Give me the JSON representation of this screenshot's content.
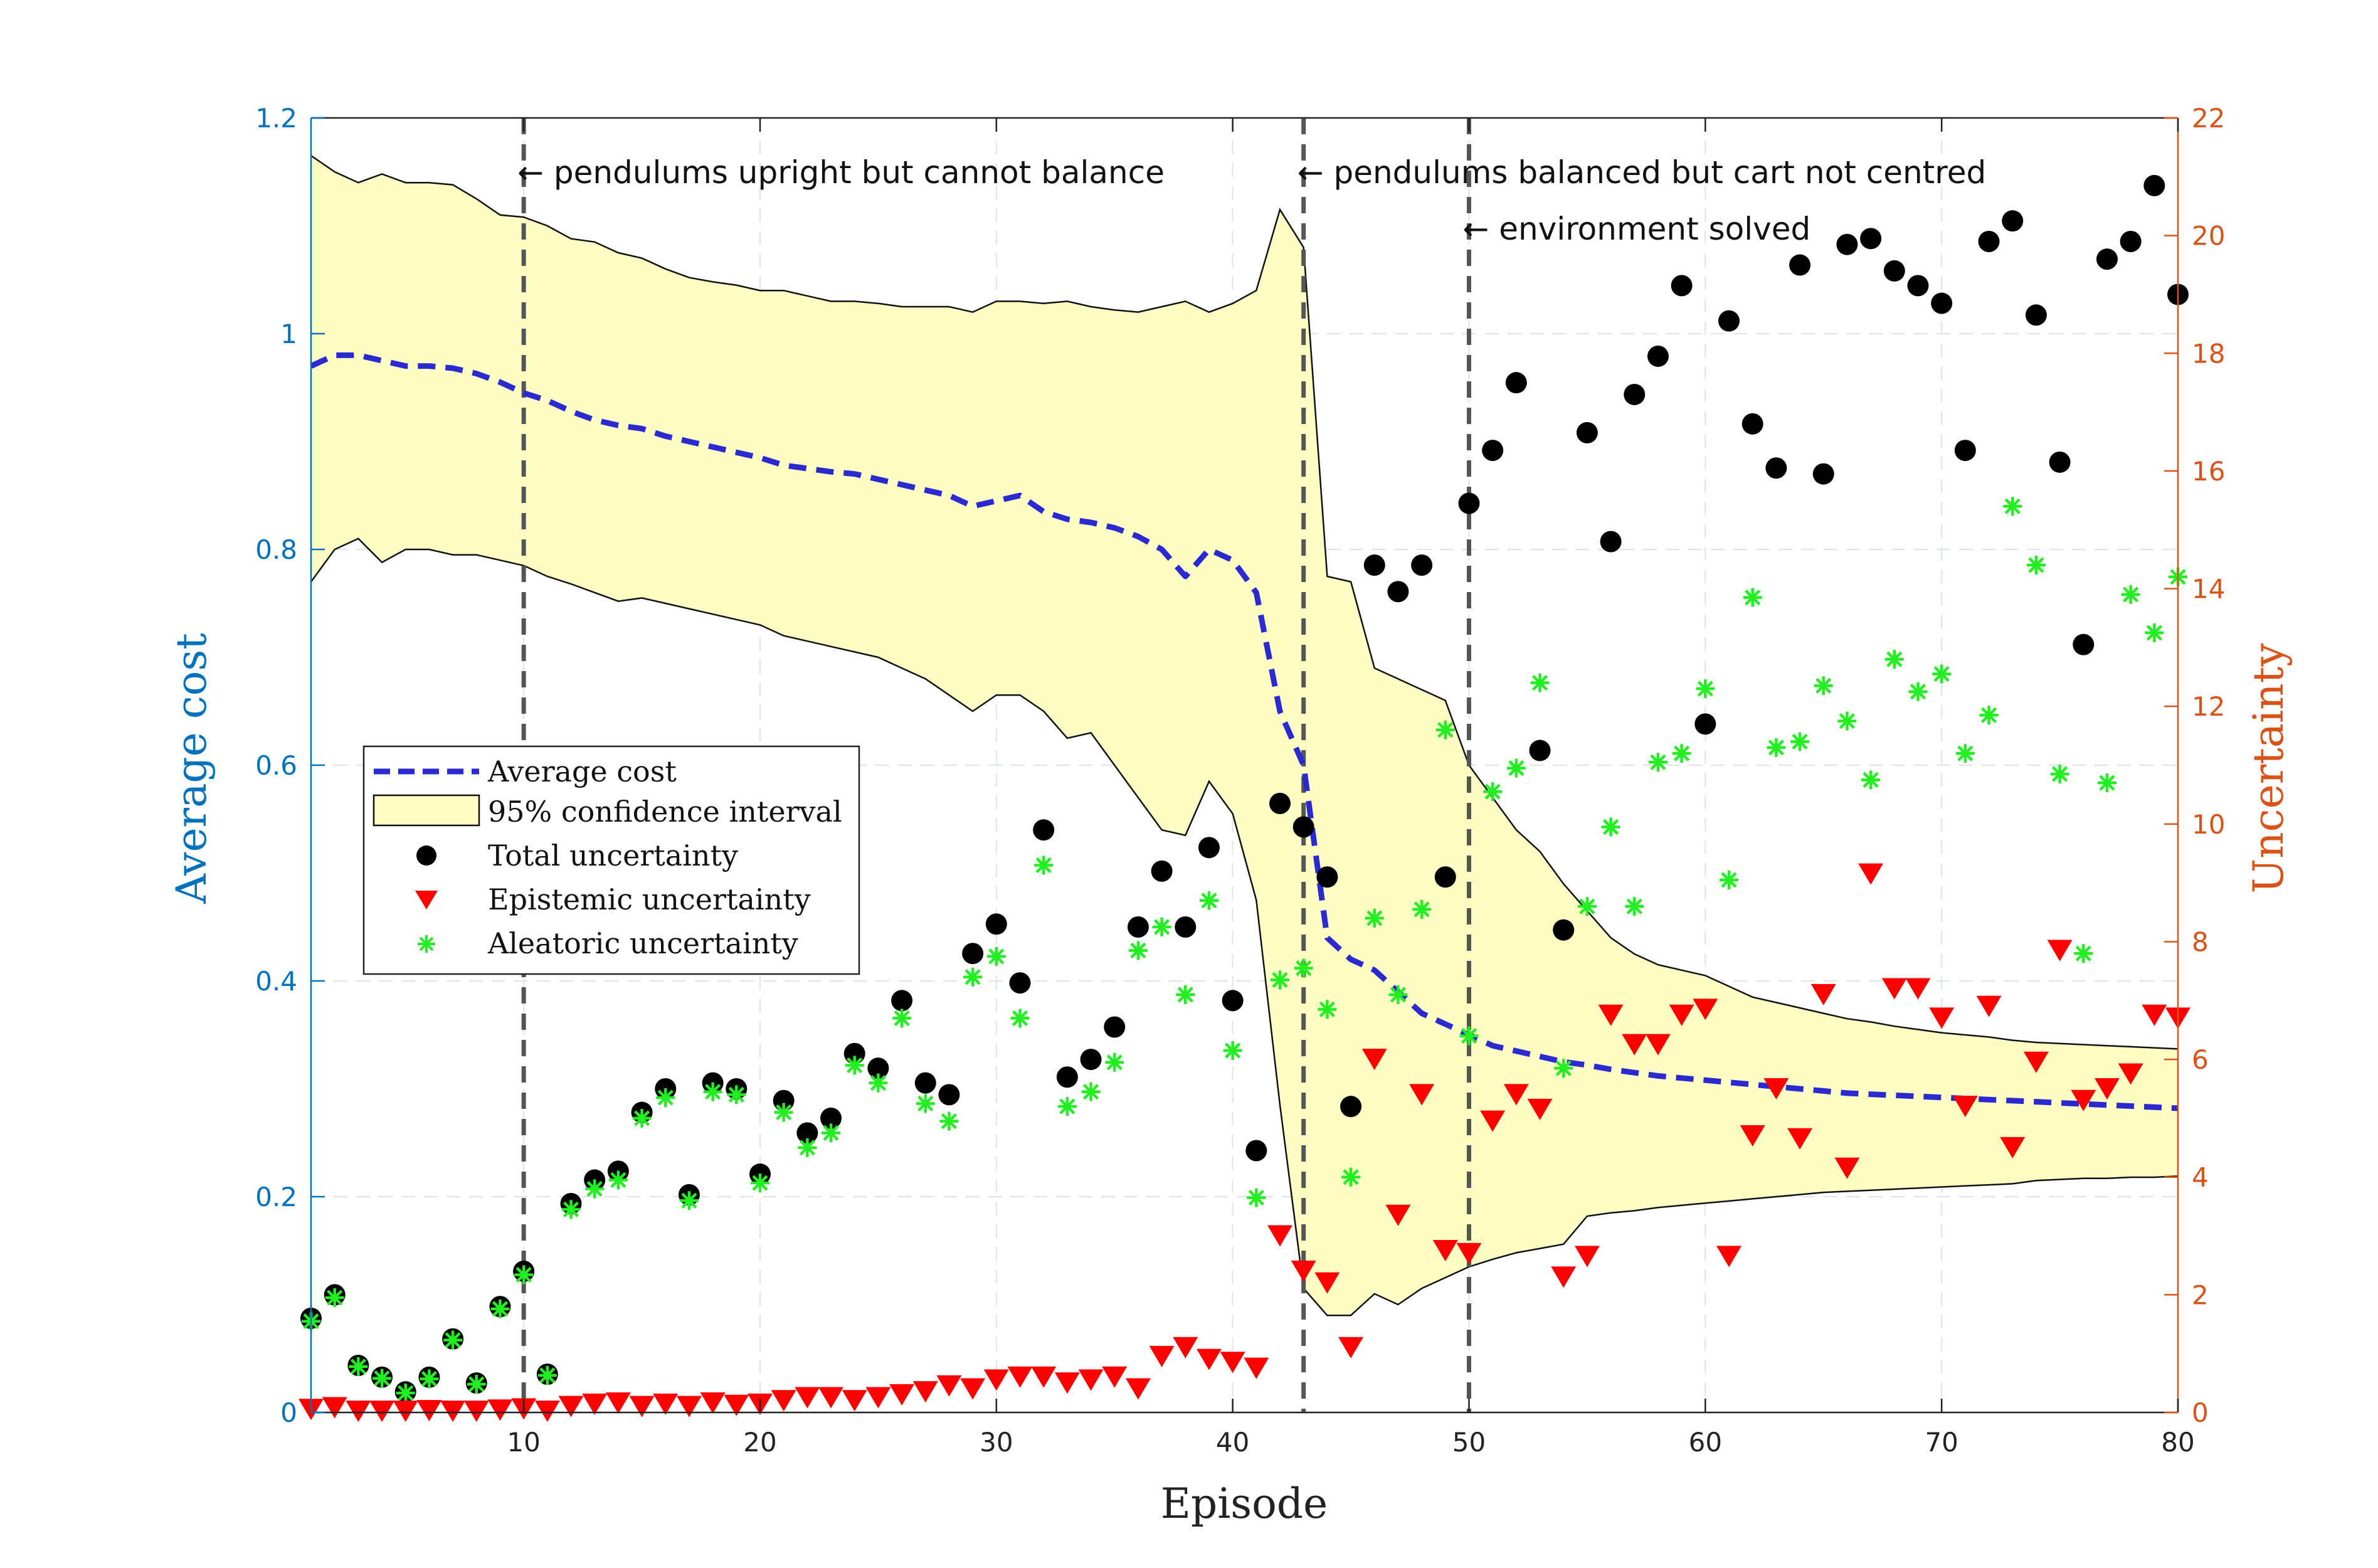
{
  "chart_data": {
    "type": "scatter",
    "xlabel": "Episode",
    "ylabel_left": "Average cost",
    "ylabel_right": "Uncertainty",
    "xlim": [
      1,
      80
    ],
    "ylim_left": [
      0,
      1.2
    ],
    "ylim_right": [
      0,
      22
    ],
    "xticks": [
      10,
      20,
      30,
      40,
      50,
      60,
      70,
      80
    ],
    "yticks_left": [
      "0",
      "0.2",
      "0.4",
      "0.6",
      "0.8",
      "1",
      "1.2"
    ],
    "yticks_left_values": [
      0,
      0.2,
      0.4,
      0.6,
      0.8,
      1.0,
      1.2
    ],
    "yticks_right": [
      0,
      2,
      4,
      6,
      8,
      10,
      12,
      14,
      16,
      18,
      20,
      22
    ],
    "colors": {
      "left_axis": "#0072BD",
      "right_axis": "#D95319",
      "mean": "#2a2ad0",
      "ci_fill": "#fdfdc4",
      "total": "#000000",
      "epistemic": "#ff0000",
      "aleatoric": "#22ee22",
      "vline": "#555555"
    },
    "legend": {
      "position": "center-left",
      "entries": [
        "Average cost",
        "95% confidence interval",
        "Total uncertainty",
        "Epistemic uncertainty",
        "Aleatoric uncertainty"
      ]
    },
    "annotations": [
      {
        "x": 10,
        "text": "← pendulums upright but cannot balance"
      },
      {
        "x": 43,
        "text": "← pendulums balanced but cart not centred"
      },
      {
        "x": 50,
        "text": "← environment solved"
      }
    ],
    "vlines": [
      10,
      43,
      50
    ],
    "series": [
      {
        "name": "Average cost",
        "axis": "left",
        "x": [
          1,
          2,
          3,
          4,
          5,
          6,
          7,
          8,
          9,
          10,
          11,
          12,
          13,
          14,
          15,
          16,
          17,
          18,
          19,
          20,
          21,
          22,
          23,
          24,
          25,
          26,
          27,
          28,
          29,
          30,
          31,
          32,
          33,
          34,
          35,
          36,
          37,
          38,
          39,
          40,
          41,
          42,
          43,
          44,
          45,
          46,
          47,
          48,
          49,
          50,
          51,
          52,
          53,
          54,
          55,
          56,
          57,
          58,
          59,
          60,
          61,
          62,
          63,
          64,
          65,
          66,
          67,
          68,
          69,
          70,
          71,
          72,
          73,
          74,
          75,
          76,
          77,
          78,
          79,
          80
        ],
        "values": [
          0.97,
          0.98,
          0.98,
          0.975,
          0.97,
          0.97,
          0.968,
          0.963,
          0.955,
          0.945,
          0.938,
          0.928,
          0.92,
          0.915,
          0.912,
          0.905,
          0.9,
          0.895,
          0.89,
          0.885,
          0.878,
          0.875,
          0.872,
          0.87,
          0.865,
          0.86,
          0.855,
          0.85,
          0.84,
          0.845,
          0.85,
          0.835,
          0.828,
          0.825,
          0.82,
          0.812,
          0.8,
          0.775,
          0.8,
          0.79,
          0.76,
          0.65,
          0.6,
          0.44,
          0.42,
          0.41,
          0.39,
          0.37,
          0.36,
          0.35,
          0.34,
          0.335,
          0.33,
          0.325,
          0.322,
          0.318,
          0.315,
          0.312,
          0.31,
          0.308,
          0.306,
          0.304,
          0.302,
          0.3,
          0.298,
          0.296,
          0.295,
          0.294,
          0.293,
          0.292,
          0.291,
          0.29,
          0.289,
          0.288,
          0.287,
          0.286,
          0.285,
          0.284,
          0.283,
          0.282
        ]
      },
      {
        "name": "95% confidence interval upper",
        "axis": "left",
        "x": [
          1,
          2,
          3,
          4,
          5,
          6,
          7,
          8,
          9,
          10,
          11,
          12,
          13,
          14,
          15,
          16,
          17,
          18,
          19,
          20,
          21,
          22,
          23,
          24,
          25,
          26,
          27,
          28,
          29,
          30,
          31,
          32,
          33,
          34,
          35,
          36,
          37,
          38,
          39,
          40,
          41,
          42,
          43,
          44,
          45,
          46,
          47,
          48,
          49,
          50,
          51,
          52,
          53,
          54,
          55,
          56,
          57,
          58,
          59,
          60,
          61,
          62,
          63,
          64,
          65,
          66,
          67,
          68,
          69,
          70,
          71,
          72,
          73,
          74,
          75,
          76,
          77,
          78,
          79,
          80
        ],
        "values": [
          1.165,
          1.15,
          1.14,
          1.148,
          1.14,
          1.14,
          1.138,
          1.125,
          1.11,
          1.108,
          1.1,
          1.088,
          1.085,
          1.075,
          1.07,
          1.06,
          1.052,
          1.048,
          1.045,
          1.04,
          1.04,
          1.035,
          1.03,
          1.03,
          1.028,
          1.025,
          1.025,
          1.025,
          1.02,
          1.03,
          1.03,
          1.028,
          1.03,
          1.025,
          1.022,
          1.02,
          1.025,
          1.03,
          1.02,
          1.028,
          1.04,
          1.115,
          1.08,
          0.775,
          0.77,
          0.69,
          0.68,
          0.67,
          0.66,
          0.6,
          0.57,
          0.54,
          0.52,
          0.49,
          0.465,
          0.44,
          0.425,
          0.415,
          0.41,
          0.405,
          0.395,
          0.385,
          0.38,
          0.375,
          0.37,
          0.365,
          0.362,
          0.358,
          0.355,
          0.352,
          0.35,
          0.348,
          0.345,
          0.343,
          0.342,
          0.341,
          0.34,
          0.339,
          0.338,
          0.337
        ]
      },
      {
        "name": "95% confidence interval lower",
        "axis": "left",
        "x": [
          1,
          2,
          3,
          4,
          5,
          6,
          7,
          8,
          9,
          10,
          11,
          12,
          13,
          14,
          15,
          16,
          17,
          18,
          19,
          20,
          21,
          22,
          23,
          24,
          25,
          26,
          27,
          28,
          29,
          30,
          31,
          32,
          33,
          34,
          35,
          36,
          37,
          38,
          39,
          40,
          41,
          42,
          43,
          44,
          45,
          46,
          47,
          48,
          49,
          50,
          51,
          52,
          53,
          54,
          55,
          56,
          57,
          58,
          59,
          60,
          61,
          62,
          63,
          64,
          65,
          66,
          67,
          68,
          69,
          70,
          71,
          72,
          73,
          74,
          75,
          76,
          77,
          78,
          79,
          80
        ],
        "values": [
          0.77,
          0.8,
          0.81,
          0.788,
          0.8,
          0.8,
          0.795,
          0.795,
          0.79,
          0.785,
          0.775,
          0.768,
          0.76,
          0.752,
          0.755,
          0.75,
          0.745,
          0.74,
          0.735,
          0.73,
          0.72,
          0.715,
          0.71,
          0.705,
          0.7,
          0.69,
          0.68,
          0.665,
          0.65,
          0.665,
          0.665,
          0.65,
          0.625,
          0.63,
          0.6,
          0.57,
          0.54,
          0.535,
          0.585,
          0.555,
          0.475,
          0.285,
          0.115,
          0.09,
          0.09,
          0.11,
          0.1,
          0.115,
          0.125,
          0.135,
          0.142,
          0.148,
          0.152,
          0.156,
          0.182,
          0.185,
          0.187,
          0.19,
          0.192,
          0.194,
          0.196,
          0.198,
          0.2,
          0.202,
          0.204,
          0.205,
          0.206,
          0.207,
          0.208,
          0.209,
          0.21,
          0.211,
          0.212,
          0.215,
          0.216,
          0.217,
          0.217,
          0.218,
          0.218,
          0.219
        ]
      },
      {
        "name": "Total uncertainty",
        "axis": "right",
        "x": [
          1,
          2,
          3,
          4,
          5,
          6,
          7,
          8,
          9,
          10,
          11,
          12,
          13,
          14,
          15,
          16,
          17,
          18,
          19,
          20,
          21,
          22,
          23,
          24,
          25,
          26,
          27,
          28,
          29,
          30,
          31,
          32,
          33,
          34,
          35,
          36,
          37,
          38,
          39,
          40,
          41,
          42,
          43,
          44,
          45,
          46,
          47,
          48,
          49,
          50,
          51,
          52,
          53,
          54,
          55,
          56,
          57,
          58,
          59,
          60,
          61,
          62,
          63,
          64,
          65,
          66,
          67,
          68,
          69,
          70,
          71,
          72,
          73,
          74,
          75,
          76,
          77,
          78,
          79,
          80
        ],
        "values": [
          1.6,
          2.0,
          0.8,
          0.6,
          0.35,
          0.6,
          1.25,
          0.5,
          1.8,
          2.4,
          0.65,
          3.55,
          3.95,
          4.1,
          5.1,
          5.5,
          3.7,
          5.6,
          5.5,
          4.05,
          5.3,
          4.75,
          5.0,
          6.1,
          5.85,
          7.0,
          5.6,
          5.4,
          7.8,
          8.3,
          7.3,
          9.9,
          5.7,
          6.0,
          6.55,
          8.25,
          9.2,
          8.25,
          9.6,
          7.0,
          4.45,
          10.35,
          9.95,
          9.1,
          5.2,
          14.4,
          13.95,
          14.4,
          9.1,
          15.45,
          16.35,
          17.5,
          11.25,
          8.2,
          16.65,
          14.8,
          17.3,
          17.95,
          19.15,
          11.7,
          18.55,
          16.8,
          16.05,
          19.5,
          15.95,
          19.85,
          19.95,
          19.4,
          19.15,
          18.85,
          16.35,
          19.9,
          20.25,
          18.65,
          16.15,
          13.05,
          19.6,
          19.9,
          20.85,
          19.0
        ],
        "note": "values listed for x=1..80 in order"
      },
      {
        "name": "Epistemic uncertainty",
        "axis": "right",
        "x": [
          1,
          2,
          3,
          4,
          5,
          6,
          7,
          8,
          9,
          10,
          11,
          12,
          13,
          14,
          15,
          16,
          17,
          18,
          19,
          20,
          21,
          22,
          23,
          24,
          25,
          26,
          27,
          28,
          29,
          30,
          31,
          32,
          33,
          34,
          35,
          36,
          37,
          38,
          39,
          40,
          41,
          42,
          43,
          44,
          45,
          46,
          47,
          48,
          49,
          50,
          51,
          52,
          53,
          54,
          55,
          56,
          57,
          58,
          59,
          60,
          61,
          62,
          63,
          64,
          65,
          66,
          67,
          68,
          69,
          70,
          71,
          72,
          73,
          74,
          75,
          76,
          77,
          78,
          79,
          80
        ],
        "values": [
          0.05,
          0.08,
          0.02,
          0.02,
          0.02,
          0.03,
          0.02,
          0.02,
          0.04,
          0.06,
          0.02,
          0.1,
          0.14,
          0.16,
          0.1,
          0.14,
          0.1,
          0.16,
          0.12,
          0.14,
          0.2,
          0.25,
          0.25,
          0.2,
          0.25,
          0.3,
          0.35,
          0.45,
          0.4,
          0.55,
          0.6,
          0.6,
          0.5,
          0.55,
          0.6,
          0.4,
          0.95,
          1.1,
          0.9,
          0.85,
          0.75,
          3.0,
          2.4,
          2.2,
          1.1,
          6.0,
          3.35,
          5.4,
          2.75,
          2.7,
          4.95,
          5.4,
          5.15,
          2.3,
          2.65,
          6.75,
          6.25,
          6.25,
          6.75,
          6.85,
          2.65,
          4.7,
          5.5,
          4.65,
          7.1,
          4.15,
          9.15,
          7.2,
          7.2,
          6.7,
          5.2,
          6.9,
          4.5,
          5.95,
          7.85,
          5.3,
          5.5,
          5.75,
          6.75,
          6.7
        ]
      },
      {
        "name": "Aleatoric uncertainty",
        "axis": "right",
        "x": [
          1,
          2,
          3,
          4,
          5,
          6,
          7,
          8,
          9,
          10,
          11,
          12,
          13,
          14,
          15,
          16,
          17,
          18,
          19,
          20,
          21,
          22,
          23,
          24,
          25,
          26,
          27,
          28,
          29,
          30,
          31,
          32,
          33,
          34,
          35,
          36,
          37,
          38,
          39,
          40,
          41,
          42,
          43,
          44,
          45,
          46,
          47,
          48,
          49,
          50,
          51,
          52,
          53,
          54,
          55,
          56,
          57,
          58,
          59,
          60,
          61,
          62,
          63,
          64,
          65,
          66,
          67,
          68,
          69,
          70,
          71,
          72,
          73,
          74,
          75,
          76,
          77,
          78,
          79,
          80
        ],
        "values": [
          1.55,
          1.95,
          0.78,
          0.58,
          0.33,
          0.57,
          1.23,
          0.48,
          1.76,
          2.34,
          0.63,
          3.45,
          3.8,
          3.95,
          5.0,
          5.35,
          3.6,
          5.45,
          5.4,
          3.9,
          5.1,
          4.5,
          4.75,
          5.9,
          5.6,
          6.7,
          5.25,
          4.95,
          7.4,
          7.75,
          6.7,
          9.3,
          5.2,
          5.45,
          5.95,
          7.85,
          8.25,
          7.1,
          8.7,
          6.15,
          3.65,
          7.35,
          7.55,
          6.85,
          4.0,
          8.4,
          7.1,
          8.55,
          11.6,
          6.4,
          10.55,
          10.95,
          12.4,
          5.85,
          8.6,
          9.95,
          8.6,
          11.05,
          11.2,
          12.3,
          9.05,
          13.85,
          11.3,
          11.4,
          12.35,
          11.75,
          10.75,
          12.8,
          12.25,
          12.55,
          11.2,
          11.85,
          15.4,
          14.4,
          10.85,
          7.8,
          10.7,
          13.9,
          13.25,
          14.2
        ]
      }
    ]
  }
}
